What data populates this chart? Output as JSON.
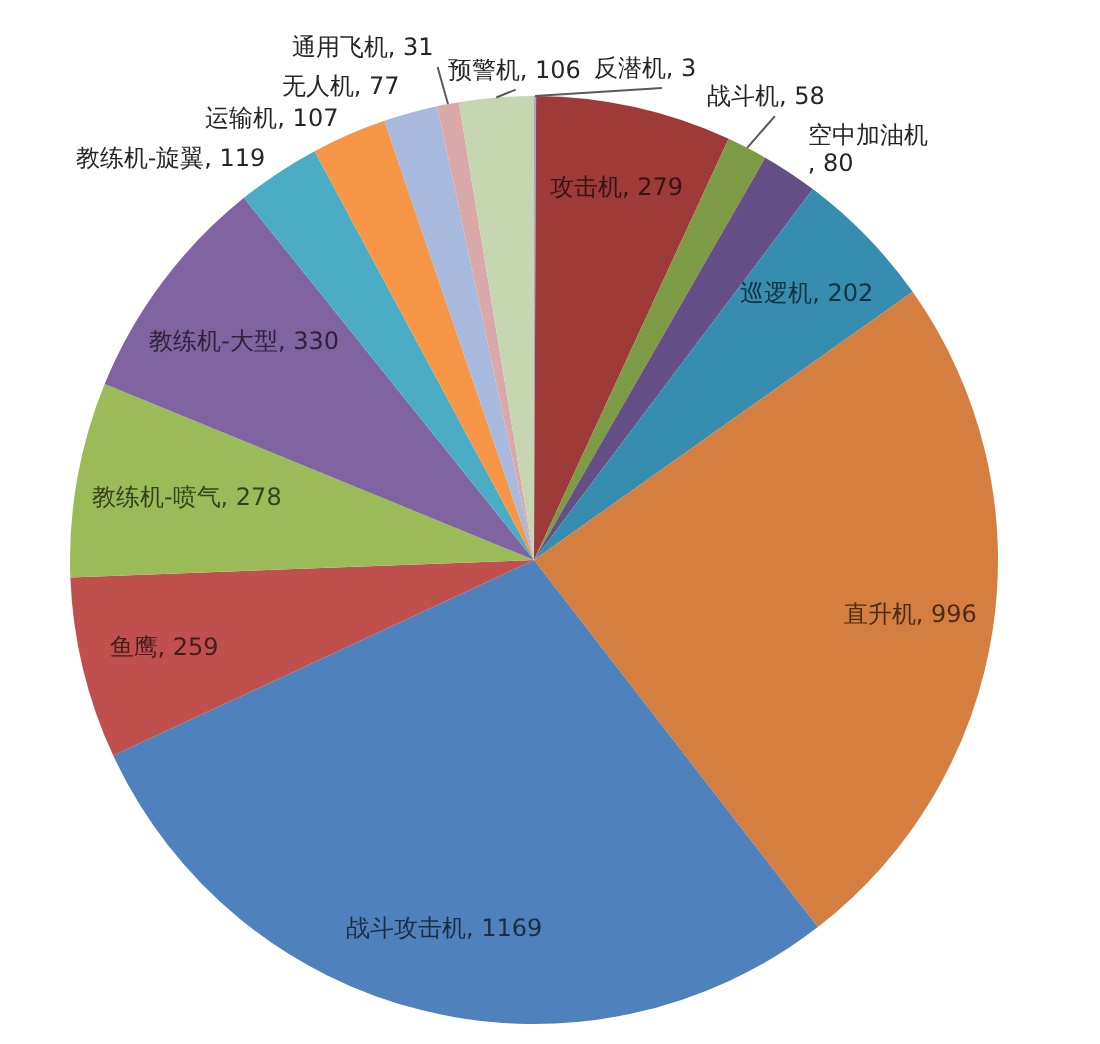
{
  "chart_data": {
    "type": "pie",
    "categories": [
      "反潜机",
      "攻击机",
      "战斗机",
      "空中加油机",
      "巡逻机",
      "直升机",
      "战斗攻击机",
      "鱼鹰",
      "教练机-喷气",
      "教练机-大型",
      "教练机-旋翼",
      "运输机",
      "无人机",
      "通用飞机",
      "预警机"
    ],
    "values": [
      3,
      279,
      58,
      80,
      202,
      996,
      1169,
      259,
      278,
      330,
      119,
      107,
      77,
      31,
      106
    ],
    "value_labels": [
      ", 3",
      ", 279",
      ", 58",
      ", 80",
      ", 202",
      ", 996",
      ", 1169",
      ", 259",
      ", 278",
      ", 330",
      ", 119",
      ", 107",
      ", 77",
      ", 31",
      ", 106"
    ],
    "colors": [
      "#b3a2c7",
      "#9e3a38",
      "#7d9a44",
      "#644f86",
      "#368db0",
      "#d47f3f",
      "#4f81bd",
      "#c0504d",
      "#9bbb59",
      "#8064a2",
      "#4bacc6",
      "#f79646",
      "#a7b9dc",
      "#d8a9a8",
      "#c5d6b0"
    ],
    "legend": false
  }
}
